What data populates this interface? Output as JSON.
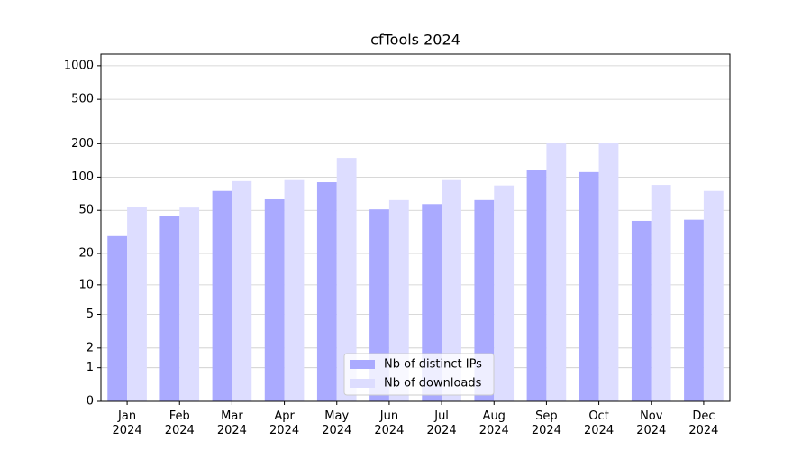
{
  "chart_data": {
    "type": "bar",
    "title": "cfTools 2024",
    "categories": [
      "Jan 2024",
      "Feb 2024",
      "Mar 2024",
      "Apr 2024",
      "May 2024",
      "Jun 2024",
      "Jul 2024",
      "Aug 2024",
      "Sep 2024",
      "Oct 2024",
      "Nov 2024",
      "Dec 2024"
    ],
    "series": [
      {
        "name": "Nb of distinct IPs",
        "color": "#aaaaff",
        "values": [
          29,
          44,
          75,
          63,
          90,
          51,
          57,
          62,
          115,
          111,
          40,
          41
        ]
      },
      {
        "name": "Nb of downloads",
        "color": "#ddddff",
        "values": [
          54,
          53,
          92,
          94,
          149,
          62,
          94,
          84,
          201,
          205,
          85,
          75
        ]
      }
    ],
    "ylim": [
      0,
      1270
    ],
    "yticks": [
      0,
      1,
      2,
      5,
      10,
      20,
      50,
      100,
      200,
      500,
      1000
    ],
    "yscale": "log1p",
    "grid": true,
    "legend": "lower center"
  }
}
